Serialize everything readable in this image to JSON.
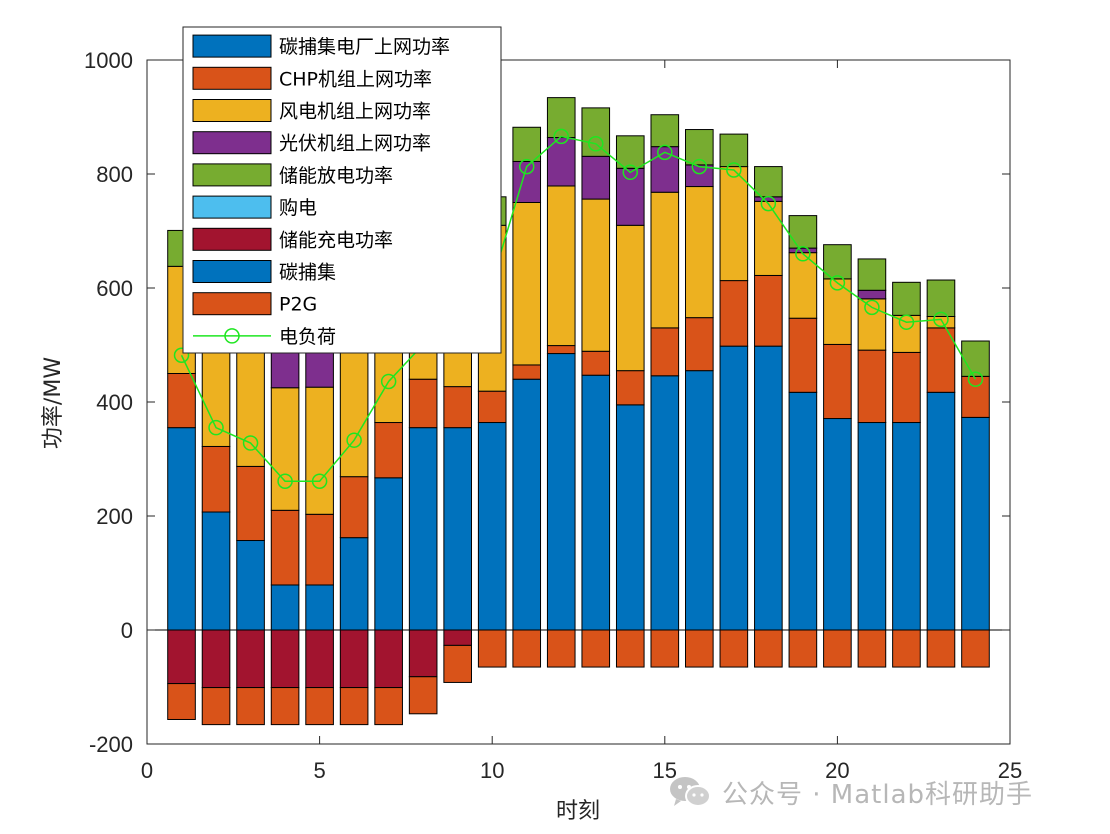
{
  "chart_data": {
    "type": "bar",
    "stacked": true,
    "x": [
      1,
      2,
      3,
      4,
      5,
      6,
      7,
      8,
      9,
      10,
      11,
      12,
      13,
      14,
      15,
      16,
      17,
      18,
      19,
      20,
      21,
      22,
      23,
      24
    ],
    "xlim": [
      0,
      25
    ],
    "ylim": [
      -200,
      1000
    ],
    "xticks": [
      0,
      5,
      10,
      15,
      20,
      25
    ],
    "yticks": [
      -200,
      0,
      200,
      400,
      600,
      800,
      1000
    ],
    "xlabel": "时刻",
    "ylabel": "功率/MW",
    "grid": false,
    "legend_position": "top-left",
    "positive_series": [
      {
        "name": "碳捕集电厂上网功率",
        "color": "#0072BD",
        "values": [
          355,
          207,
          157,
          79,
          79,
          162,
          267,
          355,
          355,
          364,
          440,
          485,
          447,
          395,
          446,
          455,
          498,
          498,
          417,
          371,
          364,
          364,
          417,
          373
        ]
      },
      {
        "name": "CHP机组上网功率",
        "color": "#D95319",
        "values": [
          95,
          115,
          130,
          131,
          124,
          107,
          97,
          85,
          72,
          55,
          25,
          14,
          42,
          60,
          84,
          93,
          115,
          124,
          130,
          130,
          127,
          123,
          113,
          72
        ]
      },
      {
        "name": "风电机组上网功率",
        "color": "#EDB120",
        "values": [
          188,
          223,
          293,
          215,
          223,
          237,
          196,
          260,
          230,
          291,
          285,
          280,
          267,
          255,
          238,
          230,
          200,
          130,
          115,
          115,
          90,
          65,
          20,
          0
        ]
      },
      {
        "name": "光伏机组上网功率",
        "color": "#7E2F8E",
        "values": [
          0,
          0,
          0,
          75,
          185,
          95,
          50,
          40,
          60,
          0,
          72,
          85,
          75,
          100,
          80,
          38,
          0,
          8,
          8,
          0,
          15,
          0,
          0,
          0
        ]
      },
      {
        "name": "储能放电功率",
        "color": "#77AC30",
        "values": [
          63,
          105,
          68,
          50,
          34,
          140,
          60,
          20,
          40,
          50,
          60,
          70,
          85,
          57,
          56,
          62,
          57,
          53,
          57,
          60,
          55,
          58,
          64,
          62
        ]
      },
      {
        "name": "购电",
        "color": "#4DBEEE",
        "values": [
          0,
          0,
          0,
          0,
          0,
          0,
          0,
          0,
          0,
          0,
          0,
          0,
          0,
          0,
          0,
          0,
          0,
          0,
          0,
          0,
          0,
          0,
          0,
          0
        ]
      }
    ],
    "negative_series": [
      {
        "name": "储能充电功率",
        "color": "#A2142F",
        "values": [
          94,
          101,
          101,
          101,
          101,
          101,
          101,
          82,
          27,
          0,
          0,
          0,
          0,
          0,
          0,
          0,
          0,
          0,
          0,
          0,
          0,
          0,
          0,
          0
        ]
      },
      {
        "name": "碳捕集",
        "color": "#0072BD",
        "values": [
          0,
          0,
          0,
          0,
          0,
          0,
          0,
          0,
          0,
          0,
          0,
          0,
          0,
          0,
          0,
          0,
          0,
          0,
          0,
          0,
          0,
          0,
          0,
          0
        ]
      },
      {
        "name": "P2G",
        "color": "#D95319",
        "values": [
          63,
          65,
          65,
          65,
          65,
          65,
          65,
          65,
          65,
          65,
          65,
          65,
          65,
          65,
          65,
          65,
          65,
          65,
          65,
          65,
          65,
          65,
          65,
          65
        ]
      }
    ],
    "line_series": [
      {
        "name": "电负荷",
        "color": "#1ee620",
        "values": [
          482,
          355,
          328,
          261,
          261,
          333,
          436,
          501,
          530,
          612,
          813,
          866,
          853,
          803,
          838,
          813,
          807,
          748,
          660,
          609,
          566,
          540,
          545,
          440
        ]
      }
    ],
    "legend": [
      "碳捕集电厂上网功率",
      "CHP机组上网功率",
      "风电机组上网功率",
      "光伏机组上网功率",
      "储能放电功率",
      "购电",
      "储能充电功率",
      "碳捕集",
      "P2G",
      "电负荷"
    ]
  },
  "watermark": {
    "icon": "wechat-icon",
    "text": "公众号 · Matlab科研助手"
  }
}
